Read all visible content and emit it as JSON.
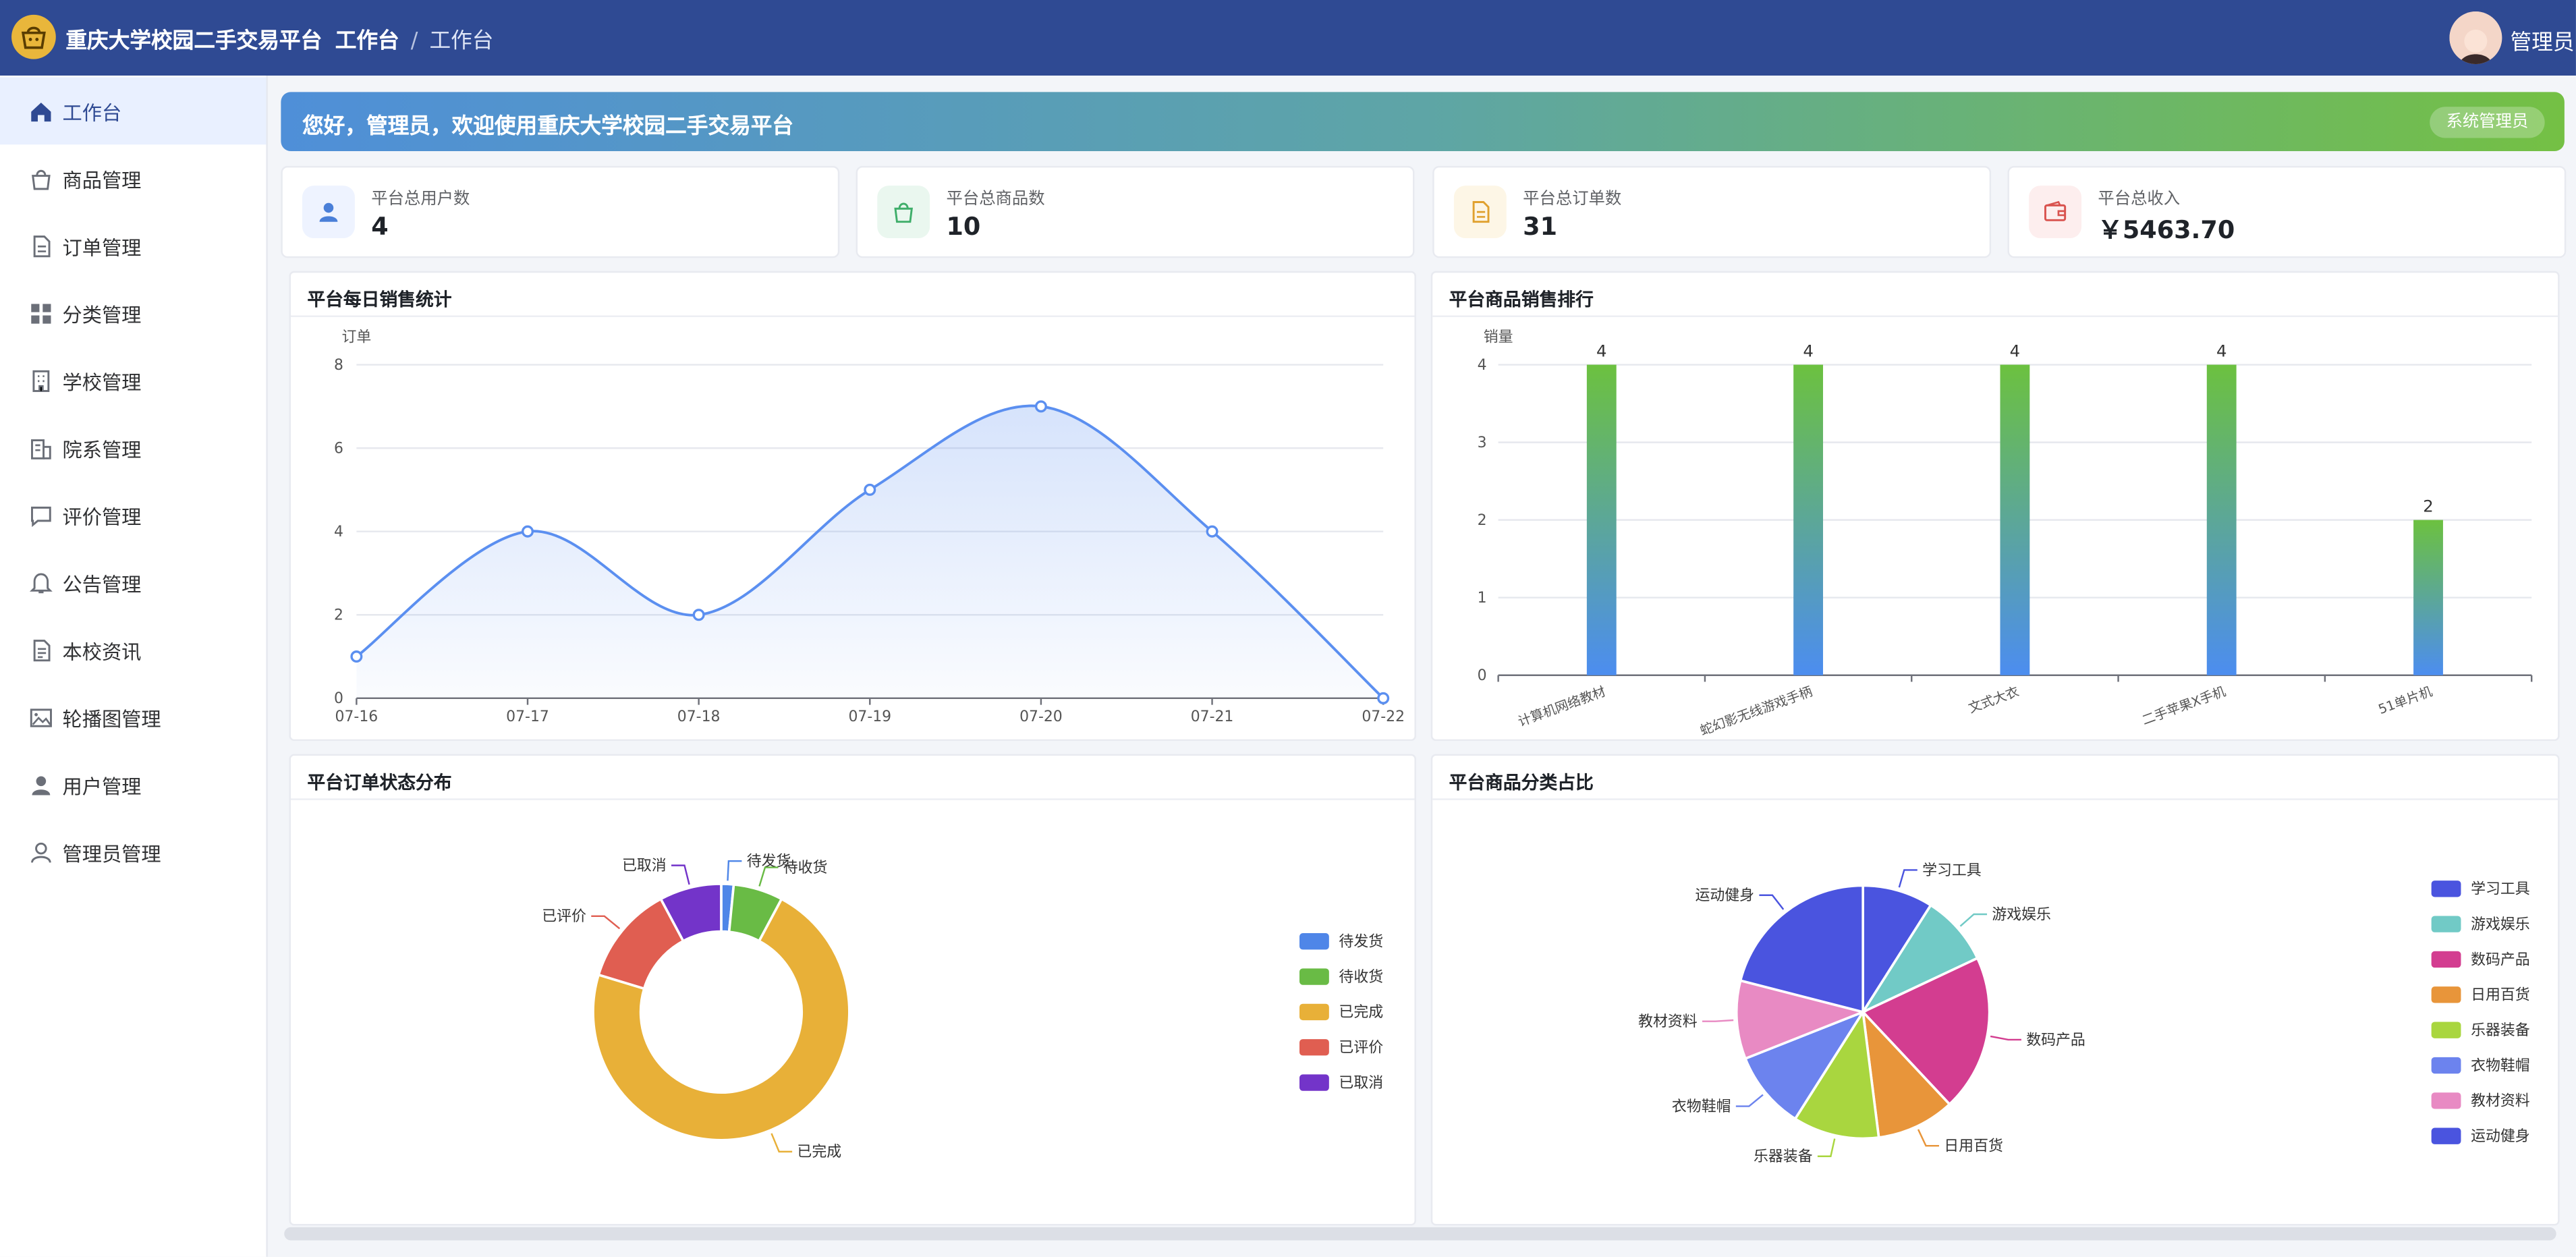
{
  "app": {
    "title": "重庆大学校园二手交易平台",
    "user": "管理员"
  },
  "breadcrumb": {
    "root": "工作台",
    "separator": "/",
    "current": "工作台"
  },
  "sidebar": {
    "items": [
      {
        "label": "工作台",
        "icon": "home-icon",
        "active": true
      },
      {
        "label": "商品管理",
        "icon": "bag-icon"
      },
      {
        "label": "订单管理",
        "icon": "document-icon"
      },
      {
        "label": "分类管理",
        "icon": "grid-icon"
      },
      {
        "label": "学校管理",
        "icon": "building-icon"
      },
      {
        "label": "院系管理",
        "icon": "office-icon"
      },
      {
        "label": "评价管理",
        "icon": "comment-icon"
      },
      {
        "label": "公告管理",
        "icon": "bell-icon"
      },
      {
        "label": "本校资讯",
        "icon": "news-icon"
      },
      {
        "label": "轮播图管理",
        "icon": "picture-icon"
      },
      {
        "label": "用户管理",
        "icon": "user-icon"
      },
      {
        "label": "管理员管理",
        "icon": "admin-icon"
      }
    ]
  },
  "banner": {
    "text": "您好，管理员，欢迎使用重庆大学校园二手交易平台",
    "badge": "系统管理员"
  },
  "stats": [
    {
      "label": "平台总用户数",
      "value": "4",
      "icon": "user-icon",
      "color": "#4a7fd8",
      "bg": "#eef3ff"
    },
    {
      "label": "平台总商品数",
      "value": "10",
      "icon": "bag-icon",
      "color": "#3fae6a",
      "bg": "#eaf7ef"
    },
    {
      "label": "平台总订单数",
      "value": "31",
      "icon": "document-icon",
      "color": "#e0a12f",
      "bg": "#fdf6e6"
    },
    {
      "label": "平台总收入",
      "value": "￥5463.70",
      "icon": "wallet-icon",
      "color": "#d9534f",
      "bg": "#fdeeee"
    }
  ],
  "colors": {
    "header": "#2f4a93",
    "line": "#5b8ff0",
    "bar_top": "#6cc13f",
    "bar_bottom": "#4c8df0"
  },
  "charts": {
    "daily": {
      "title": "平台每日销售统计"
    },
    "ranking": {
      "title": "平台商品销售排行"
    },
    "order_status": {
      "title": "平台订单状态分布"
    },
    "category": {
      "title": "平台商品分类占比"
    }
  },
  "chart_data": [
    {
      "type": "line",
      "x": [
        "07-16",
        "07-17",
        "07-18",
        "07-19",
        "07-20",
        "07-21",
        "07-22"
      ],
      "series": [
        {
          "values": [
            1,
            4,
            2,
            5,
            7,
            4,
            0
          ]
        }
      ],
      "ylabel": "订单",
      "ylim": [
        0,
        8
      ],
      "yticks": [
        0,
        2,
        4,
        6,
        8
      ],
      "smooth": true,
      "area": true
    },
    {
      "type": "bar",
      "categories": [
        "计算机网络教材",
        "蛇幻影无线游戏手柄",
        "文式大衣",
        "二手苹果X手机",
        "51单片机"
      ],
      "values": [
        4,
        4,
        4,
        4,
        2
      ],
      "ylabel": "销量",
      "ylim": [
        0,
        4
      ],
      "yticks": [
        0,
        1,
        2,
        3,
        4
      ],
      "data_labels": true
    },
    {
      "type": "pie",
      "donut": true,
      "labels": [
        "待发货",
        "待收货",
        "已完成",
        "已评价",
        "已取消"
      ],
      "values": [
        0.5,
        2,
        23,
        4,
        2.5
      ],
      "colors": [
        "#4f86e8",
        "#69bb45",
        "#e8b038",
        "#e05e51",
        "#7334c9"
      ],
      "legend": "right"
    },
    {
      "type": "pie",
      "labels": [
        "学习工具",
        "游戏娱乐",
        "数码产品",
        "日用百货",
        "乐器装备",
        "衣物鞋帽",
        "教材资料",
        "运动健身"
      ],
      "values": [
        9,
        9,
        20,
        10,
        11,
        10,
        10,
        21
      ],
      "colors": [
        "#4a54df",
        "#71cac6",
        "#d33d90",
        "#e8953a",
        "#a9d63f",
        "#6c83ee",
        "#e88ac3",
        "#4a54df"
      ],
      "legend": "right"
    }
  ]
}
